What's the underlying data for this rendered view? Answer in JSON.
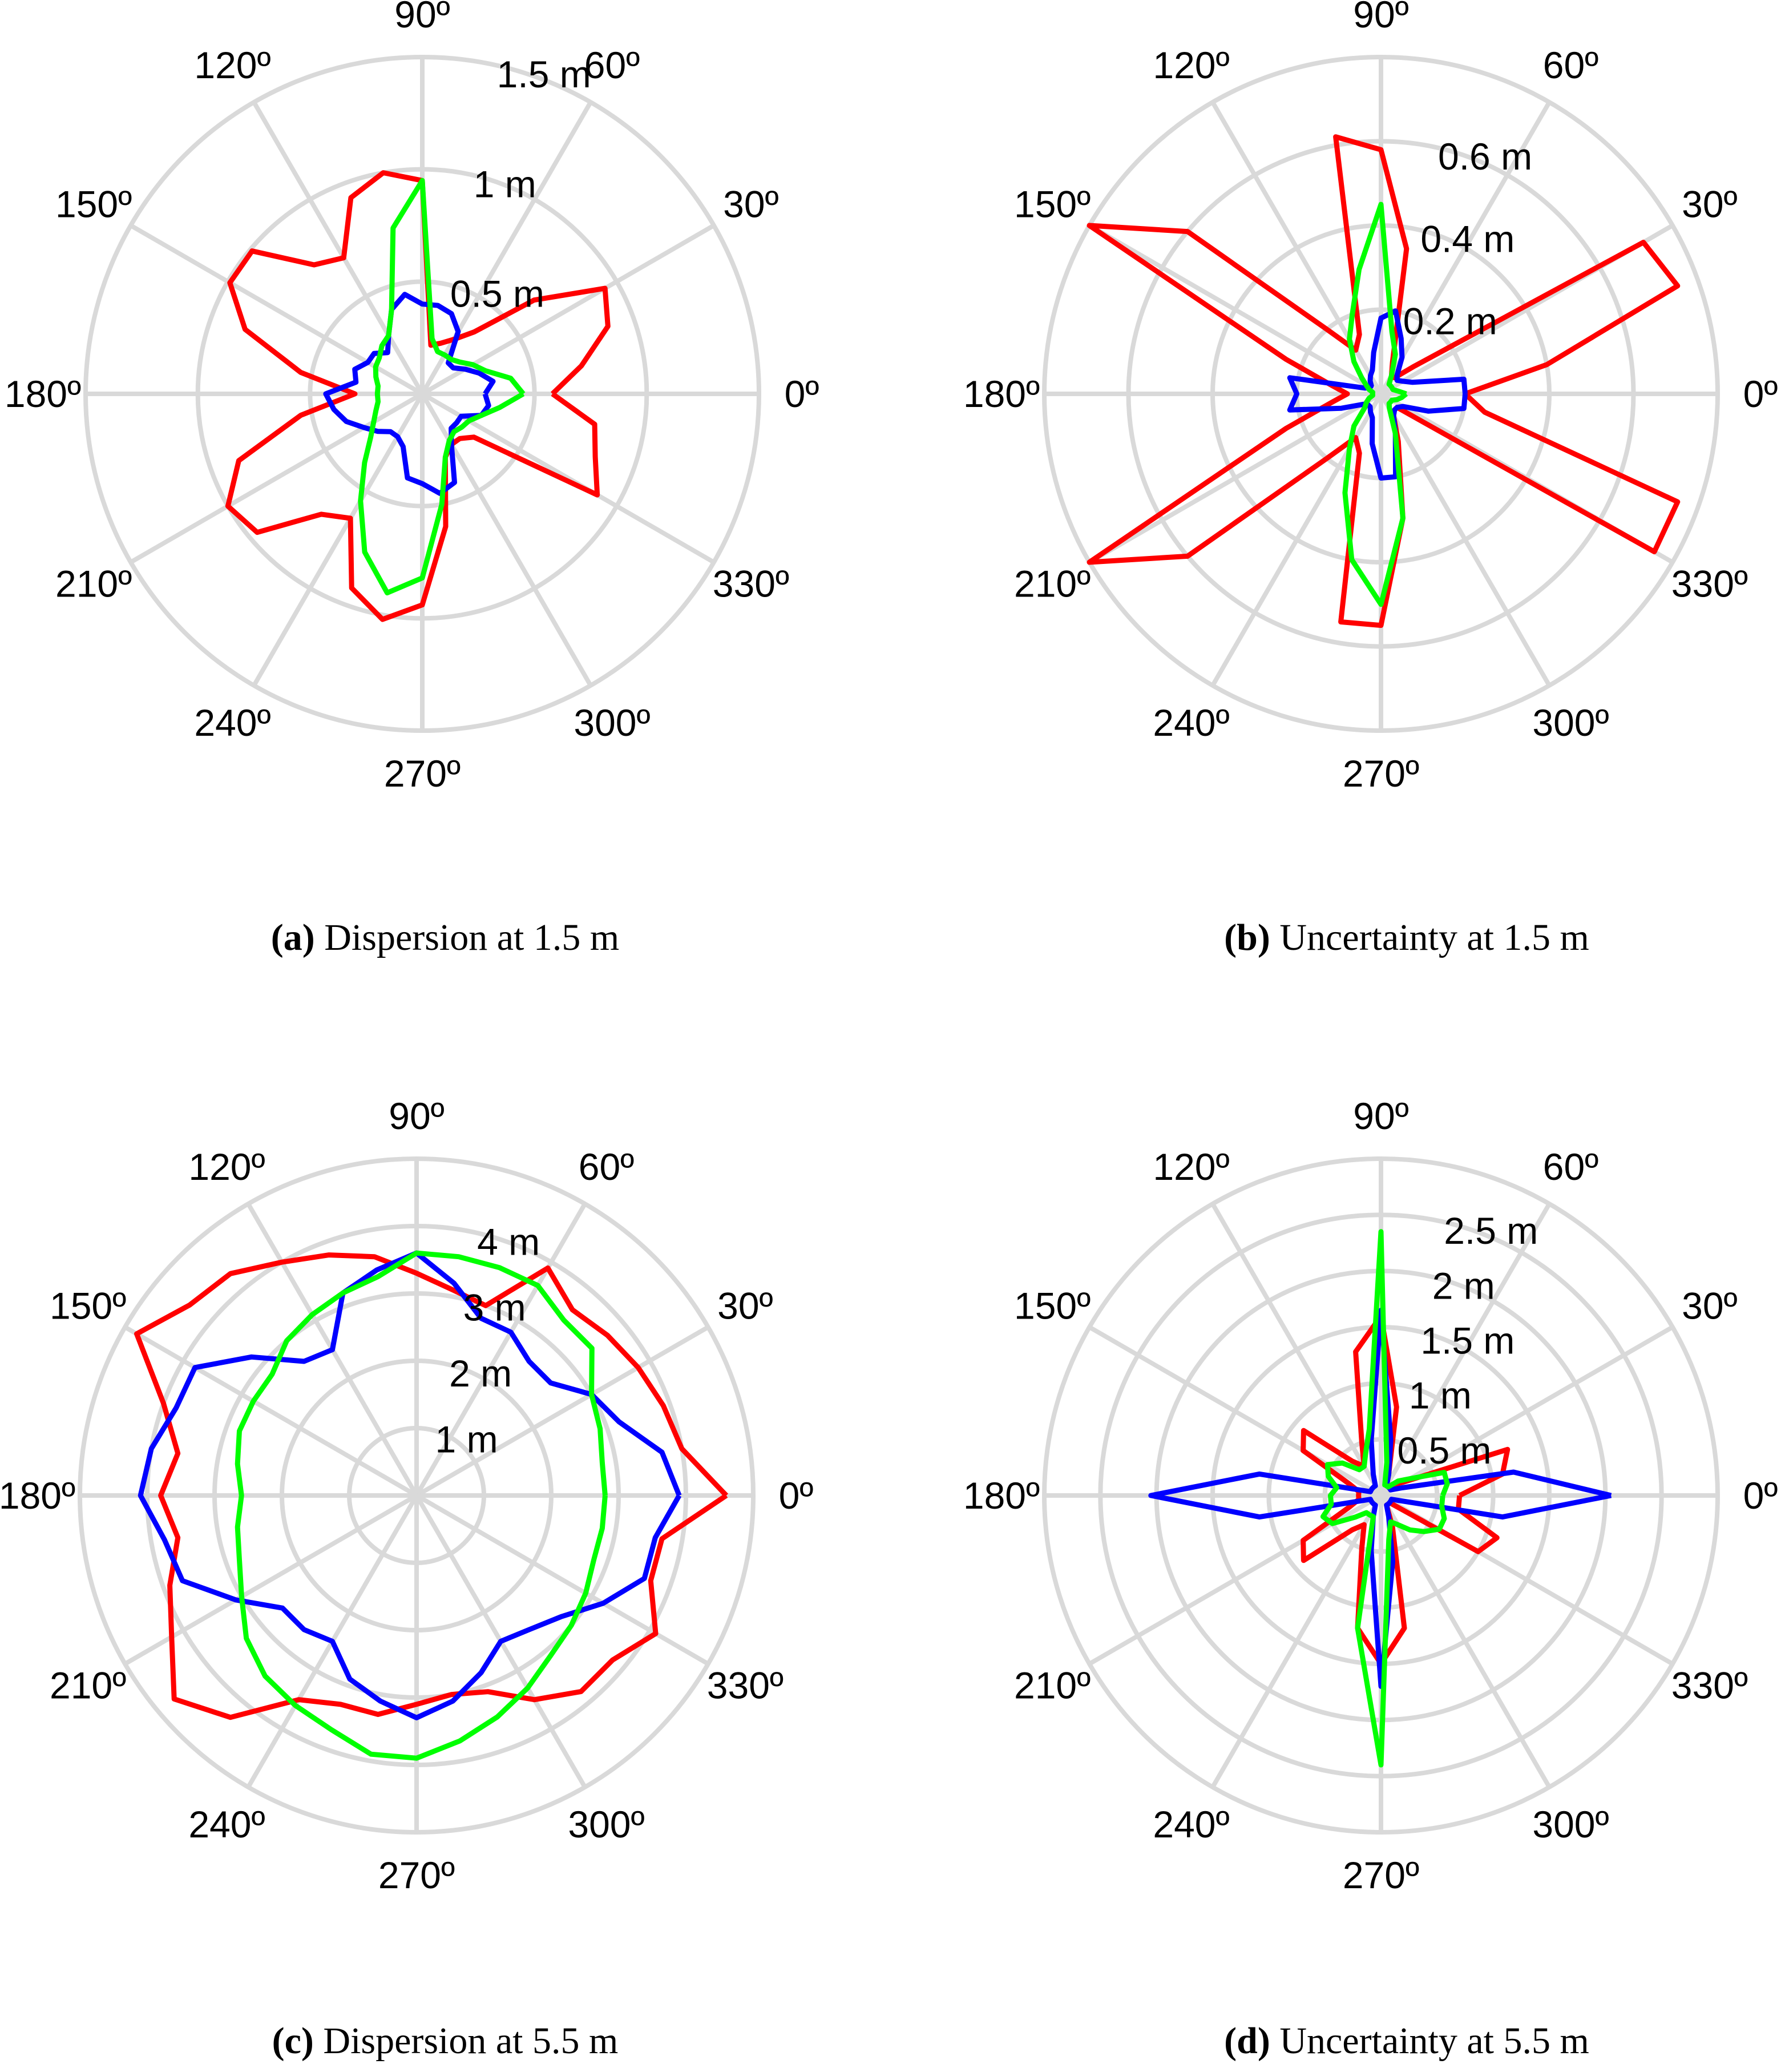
{
  "colors": {
    "series_a": "#ff0000",
    "series_b": "#0000ff",
    "series_c": "#00ff00",
    "grid": "#d9d9d9"
  },
  "chart_data": [
    {
      "id": "a",
      "type": "polar-line",
      "caption_label": "(a)",
      "caption_text": "Dispersion at 1.5 m",
      "rmax": 1.5,
      "rings": [
        0.5,
        1.0,
        1.5
      ],
      "radial_tick_labels": [
        "0.5 m",
        "1 m",
        "1.5 m"
      ],
      "angular_ticks": [
        0,
        30,
        60,
        90,
        120,
        150,
        180,
        210,
        240,
        270,
        300,
        330
      ],
      "angular_tick_labels": [
        "0º",
        "30º",
        "60º",
        "90º",
        "120º",
        "150º",
        "180º",
        "210º",
        "240º",
        "270º",
        "300º",
        "330º"
      ],
      "theta": [
        0,
        10,
        20,
        30,
        40,
        50,
        60,
        70,
        80,
        90,
        100,
        110,
        120,
        130,
        140,
        150,
        160,
        170,
        180,
        190,
        200,
        210,
        220,
        230,
        240,
        250,
        260,
        270,
        280,
        290,
        300,
        310,
        320,
        330,
        340,
        350
      ],
      "series": [
        {
          "color_key": "series_a",
          "values": [
            0.58,
            0.72,
            0.88,
            0.94,
            0.65,
            0.36,
            0.28,
            0.24,
            0.22,
            0.95,
            1.0,
            0.93,
            0.7,
            0.75,
            0.99,
            0.99,
            0.84,
            0.55,
            0.3,
            0.55,
            0.87,
            1.0,
            0.96,
            0.7,
            0.64,
            0.92,
            1.02,
            0.94,
            0.6,
            0.3,
            0.26,
            0.26,
            0.3,
            0.9,
            0.82,
            0.78
          ]
        },
        {
          "color_key": "series_b",
          "values": [
            0.28,
            0.32,
            0.27,
            0.22,
            0.18,
            0.18,
            0.32,
            0.38,
            0.4,
            0.4,
            0.45,
            0.4,
            0.3,
            0.24,
            0.28,
            0.28,
            0.32,
            0.3,
            0.43,
            0.4,
            0.36,
            0.3,
            0.26,
            0.22,
            0.22,
            0.25,
            0.38,
            0.4,
            0.45,
            0.42,
            0.26,
            0.2,
            0.2,
            0.2,
            0.28,
            0.3
          ]
        },
        {
          "color_key": "series_c",
          "values": [
            0.45,
            0.4,
            0.3,
            0.26,
            0.22,
            0.2,
            0.2,
            0.2,
            0.25,
            0.95,
            0.75,
            0.4,
            0.3,
            0.28,
            0.25,
            0.24,
            0.22,
            0.2,
            0.2,
            0.2,
            0.22,
            0.25,
            0.3,
            0.4,
            0.55,
            0.75,
            0.9,
            0.82,
            0.5,
            0.3,
            0.24,
            0.22,
            0.23,
            0.24,
            0.28,
            0.35
          ]
        }
      ]
    },
    {
      "id": "b",
      "type": "polar-line",
      "caption_label": "(b)",
      "caption_text": "Uncertainty at 1.5 m",
      "rmax": 0.8,
      "rings": [
        0.2,
        0.4,
        0.6,
        0.8
      ],
      "radial_tick_labels": [
        "0.2 m",
        "0.4 m",
        "0.6 m",
        ""
      ],
      "angular_ticks": [
        0,
        30,
        60,
        90,
        120,
        150,
        180,
        210,
        240,
        270,
        300,
        330
      ],
      "angular_tick_labels": [
        "0º",
        "30º",
        "60º",
        "90º",
        "120º",
        "150º",
        "180º",
        "210º",
        "240º",
        "270º",
        "300º",
        "330º"
      ],
      "theta": [
        0,
        10,
        20,
        30,
        40,
        50,
        60,
        70,
        80,
        90,
        100,
        110,
        120,
        130,
        140,
        150,
        160,
        170,
        180,
        190,
        200,
        210,
        220,
        230,
        240,
        250,
        260,
        270,
        280,
        290,
        300,
        310,
        320,
        330,
        340,
        350
      ],
      "series": [
        {
          "color_key": "series_a",
          "values": [
            0.2,
            0.4,
            0.75,
            0.72,
            0.1,
            0.05,
            0.05,
            0.08,
            0.35,
            0.58,
            0.62,
            0.15,
            0.12,
            0.2,
            0.6,
            0.8,
            0.24,
            0.12,
            0.08,
            0.12,
            0.24,
            0.8,
            0.6,
            0.2,
            0.12,
            0.15,
            0.55,
            0.55,
            0.3,
            0.12,
            0.06,
            0.05,
            0.05,
            0.75,
            0.75,
            0.25
          ]
        },
        {
          "color_key": "series_b",
          "values": [
            0.2,
            0.2,
            0.08,
            0.06,
            0.05,
            0.06,
            0.1,
            0.14,
            0.2,
            0.18,
            0.1,
            0.06,
            0.05,
            0.04,
            0.03,
            0.03,
            0.04,
            0.22,
            0.2,
            0.22,
            0.1,
            0.05,
            0.04,
            0.04,
            0.05,
            0.06,
            0.12,
            0.2,
            0.2,
            0.1,
            0.06,
            0.05,
            0.05,
            0.06,
            0.12,
            0.2
          ]
        },
        {
          "color_key": "series_c",
          "values": [
            0.06,
            0.04,
            0.03,
            0.03,
            0.03,
            0.03,
            0.05,
            0.1,
            0.15,
            0.45,
            0.3,
            0.2,
            0.15,
            0.1,
            0.06,
            0.04,
            0.03,
            0.02,
            0.02,
            0.02,
            0.03,
            0.04,
            0.05,
            0.1,
            0.15,
            0.25,
            0.4,
            0.5,
            0.3,
            0.1,
            0.04,
            0.03,
            0.03,
            0.03,
            0.04,
            0.05
          ]
        }
      ]
    },
    {
      "id": "c",
      "type": "polar-line",
      "caption_label": "(c)",
      "caption_text": "Dispersion at 5.5 m",
      "rmax": 5.0,
      "rings": [
        1,
        2,
        3,
        4,
        5
      ],
      "radial_tick_labels": [
        "1 m",
        "2 m",
        "3 m",
        "4 m",
        ""
      ],
      "angular_ticks": [
        0,
        30,
        60,
        90,
        120,
        150,
        180,
        210,
        240,
        270,
        300,
        330
      ],
      "angular_tick_labels": [
        "0º",
        "30º",
        "60º",
        "90º",
        "120º",
        "150º",
        "180º",
        "210º",
        "240º",
        "270º",
        "300º",
        "330º"
      ],
      "theta": [
        0,
        10,
        20,
        30,
        40,
        50,
        60,
        70,
        80,
        90,
        100,
        110,
        120,
        130,
        140,
        150,
        160,
        170,
        180,
        190,
        200,
        210,
        220,
        230,
        240,
        250,
        260,
        270,
        280,
        290,
        300,
        310,
        320,
        330,
        340,
        350
      ],
      "series": [
        {
          "color_key": "series_a",
          "values": [
            4.6,
            4.0,
            3.9,
            3.8,
            3.7,
            3.6,
            3.9,
            3.0,
            3.1,
            3.3,
            3.6,
            3.8,
            4.0,
            4.3,
            4.4,
            4.8,
            4.0,
            3.6,
            3.8,
            3.6,
            3.9,
            4.2,
            4.7,
            4.3,
            3.5,
            3.3,
            3.3,
            3.1,
            3.0,
            3.1,
            3.5,
            3.8,
            3.8,
            4.1,
            3.7,
            3.7
          ]
        },
        {
          "color_key": "series_b",
          "values": [
            3.9,
            3.7,
            3.2,
            3.0,
            2.6,
            2.6,
            2.8,
            2.8,
            3.2,
            3.6,
            3.4,
            3.2,
            2.5,
            2.6,
            3.2,
            3.8,
            3.8,
            4.0,
            4.1,
            3.8,
            3.7,
            3.1,
            2.6,
            2.6,
            2.5,
            2.9,
            3.1,
            3.3,
            3.1,
            2.8,
            2.5,
            2.6,
            2.8,
            3.2,
            3.6,
            3.6
          ]
        },
        {
          "color_key": "series_c",
          "values": [
            2.8,
            2.8,
            2.9,
            3.0,
            3.4,
            3.4,
            3.6,
            3.6,
            3.6,
            3.6,
            3.3,
            3.2,
            3.1,
            3.0,
            2.8,
            2.8,
            2.8,
            2.7,
            2.6,
            2.7,
            2.8,
            3.0,
            3.3,
            3.5,
            3.6,
            3.7,
            3.9,
            3.9,
            3.7,
            3.5,
            3.3,
            3.1,
            3.0,
            2.9,
            2.8,
            2.8
          ]
        }
      ]
    },
    {
      "id": "d",
      "type": "polar-line",
      "caption_label": "(d)",
      "caption_text": "Uncertainty at 5.5 m",
      "rmax": 3.0,
      "rings": [
        0.5,
        1.0,
        1.5,
        2.0,
        2.5,
        3.0
      ],
      "radial_tick_labels": [
        "0.5 m",
        "1 m",
        "1.5 m",
        "2 m",
        "2.5 m",
        ""
      ],
      "angular_ticks": [
        0,
        30,
        60,
        90,
        120,
        150,
        180,
        210,
        240,
        270,
        300,
        330
      ],
      "angular_tick_labels": [
        "0º",
        "30º",
        "60º",
        "90º",
        "120º",
        "150º",
        "180º",
        "210º",
        "240º",
        "270º",
        "300º",
        "330º"
      ],
      "theta": [
        0,
        10,
        20,
        30,
        40,
        50,
        60,
        70,
        80,
        90,
        100,
        110,
        120,
        130,
        140,
        150,
        160,
        170,
        180,
        190,
        200,
        210,
        220,
        230,
        240,
        250,
        260,
        270,
        280,
        290,
        300,
        310,
        320,
        330,
        340,
        350
      ],
      "series": [
        {
          "color_key": "series_a",
          "values": [
            0.7,
            1.1,
            1.2,
            0.25,
            0.15,
            0.1,
            0.1,
            0.2,
            0.8,
            1.6,
            1.3,
            0.5,
            0.3,
            0.4,
            0.9,
            0.8,
            0.3,
            0.2,
            0.2,
            0.2,
            0.3,
            0.8,
            0.9,
            0.4,
            0.3,
            0.5,
            1.2,
            1.5,
            1.2,
            0.3,
            0.1,
            0.1,
            0.1,
            1.0,
            1.1,
            0.7
          ]
        },
        {
          "color_key": "series_b",
          "values": [
            2.05,
            1.2,
            0.2,
            0.1,
            0.1,
            0.1,
            0.1,
            0.2,
            0.5,
            1.65,
            0.5,
            0.2,
            0.1,
            0.1,
            0.1,
            0.1,
            0.1,
            1.1,
            2.05,
            1.1,
            0.1,
            0.1,
            0.1,
            0.1,
            0.1,
            0.2,
            0.5,
            1.7,
            0.6,
            0.2,
            0.1,
            0.1,
            0.1,
            0.1,
            0.1,
            1.1
          ]
        },
        {
          "color_key": "series_c",
          "values": [
            0.55,
            0.6,
            0.6,
            0.3,
            0.2,
            0.1,
            0.1,
            0.1,
            0.3,
            2.35,
            0.6,
            0.4,
            0.3,
            0.3,
            0.45,
            0.55,
            0.5,
            0.4,
            0.45,
            0.45,
            0.55,
            0.5,
            0.3,
            0.2,
            0.2,
            0.2,
            1.2,
            2.4,
            0.4,
            0.25,
            0.3,
            0.4,
            0.5,
            0.6,
            0.6,
            0.55
          ]
        }
      ]
    }
  ]
}
